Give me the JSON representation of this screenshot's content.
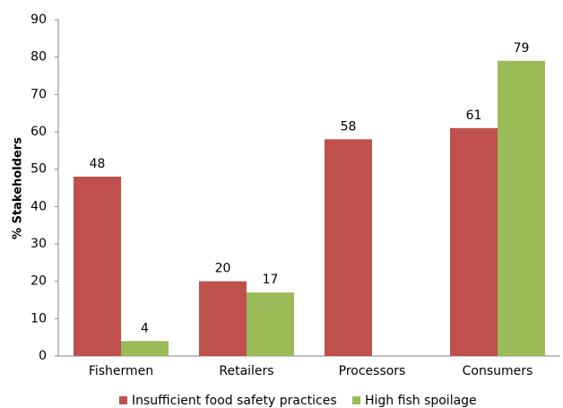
{
  "chart_data": {
    "type": "bar",
    "categories": [
      "Fishermen",
      "Retailers",
      "Processors",
      "Consumers"
    ],
    "series": [
      {
        "name": "Insufficient food safety practices",
        "color": "#c0504d",
        "values": [
          48,
          20,
          58,
          61
        ]
      },
      {
        "name": "High fish spoilage",
        "color": "#9bbb59",
        "values": [
          4,
          17,
          null,
          79
        ]
      }
    ],
    "ylabel": "% Stakeholders",
    "ylim": [
      0,
      90
    ],
    "yticks": [
      0,
      10,
      20,
      30,
      40,
      50,
      60,
      70,
      80,
      90
    ],
    "grid": false,
    "legend": "bottom"
  }
}
